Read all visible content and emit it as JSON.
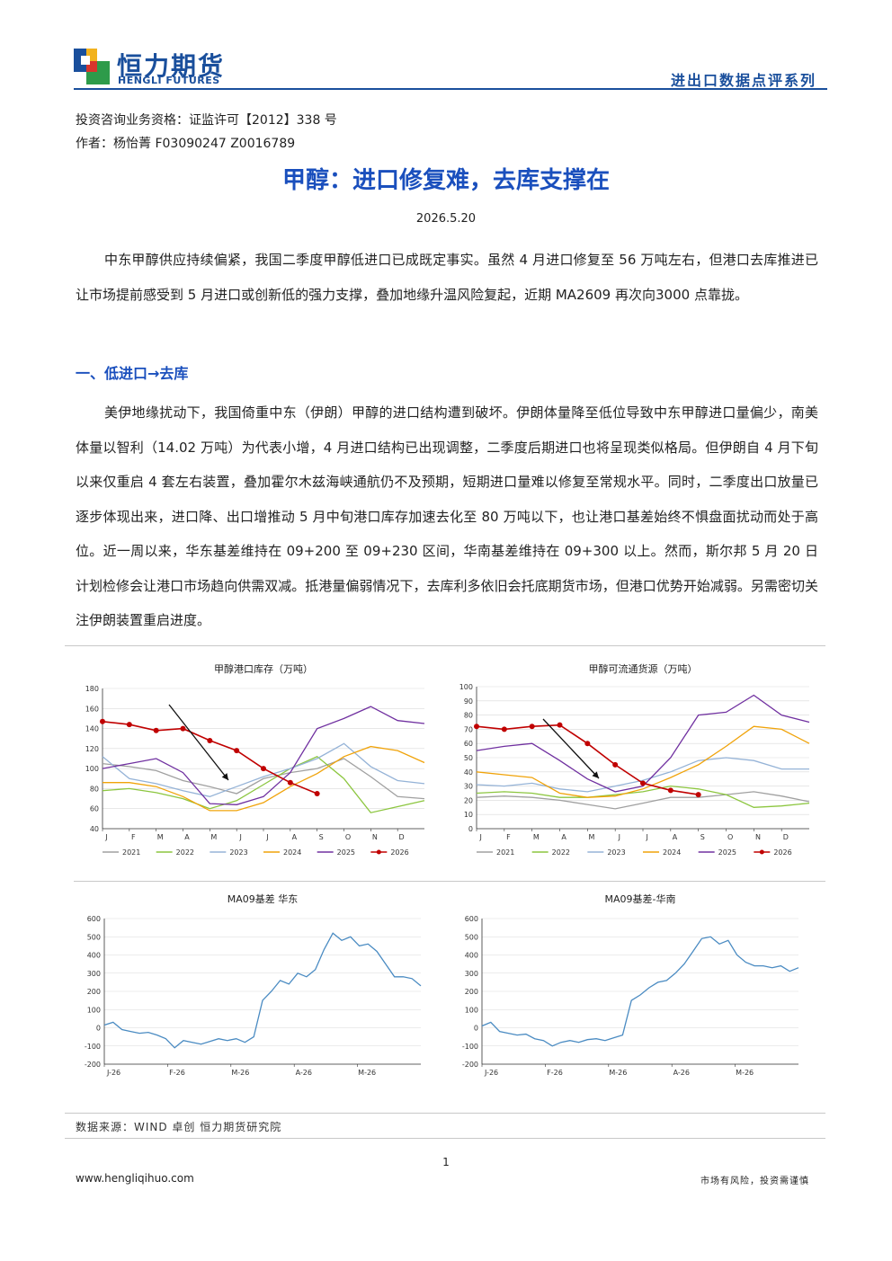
{
  "header": {
    "logo_cn": "恒力期货",
    "logo_en": "HENGLI FUTURES",
    "series": "进出口数据点评系列",
    "logo_colors": [
      "#1a4f9c",
      "#2e9b4a",
      "#f2b21e",
      "#d9352c"
    ]
  },
  "meta": {
    "qualification": "投资咨询业务资格：证监许可【2012】338 号",
    "author": "作者：杨怡菁    F03090247    Z0016789"
  },
  "title": "甲醇：进口修复难，去库支撑在",
  "date": "2026.5.20",
  "intro": "中东甲醇供应持续偏紧，我国二季度甲醇低进口已成既定事实。虽然 4 月进口修复至 56 万吨左右，但港口去库推进已让市场提前感受到 5 月进口或创新低的强力支撑，叠加地缘升温风险复起，近期 MA2609 再次向3000 点靠拢。",
  "section1": {
    "heading": "一、低进口→去库",
    "body": "美伊地缘扰动下，我国倚重中东（伊朗）甲醇的进口结构遭到破坏。伊朗体量降至低位导致中东甲醇进口量偏少，南美体量以智利（14.02 万吨）为代表小增，4 月进口结构已出现调整，二季度后期进口也将呈现类似格局。但伊朗自 4 月下旬以来仅重启 4 套左右装置，叠加霍尔木兹海峡通航仍不及预期，短期进口量难以修复至常规水平。同时，二季度出口放量已逐步体现出来，进口降、出口增推动 5 月中旬港口库存加速去化至 80 万吨以下，也让港口基差始终不惧盘面扰动而处于高位。近一周以来，华东基差维持在 09+200 至 09+230 区间，华南基差维持在 09+300 以上。然而，斯尔邦 5 月 20 日计划检修会让港口市场趋向供需双减。抵港量偏弱情况下，去库利多依旧会托底期货市场，但港口优势开始减弱。另需密切关注伊朗装置重启进度。"
  },
  "chart_data": [
    {
      "type": "line",
      "title": "甲醇港口库存（万吨）",
      "ylim": [
        40,
        180
      ],
      "yticks": [
        40,
        60,
        80,
        100,
        120,
        140,
        160,
        180
      ],
      "xticks": [
        "J",
        "F",
        "M",
        "A",
        "M",
        "J",
        "J",
        "A",
        "S",
        "O",
        "N",
        "D"
      ],
      "legend_position": "bottom",
      "series": [
        {
          "name": "2021",
          "color": "#a0a0a0",
          "values": [
            105,
            102,
            98,
            88,
            82,
            75,
            90,
            96,
            100,
            110,
            92,
            72,
            70
          ]
        },
        {
          "name": "2022",
          "color": "#8cc63f",
          "values": [
            78,
            80,
            76,
            70,
            60,
            68,
            84,
            100,
            112,
            90,
            56,
            62,
            68
          ]
        },
        {
          "name": "2023",
          "color": "#95b3d7",
          "values": [
            112,
            90,
            85,
            78,
            72,
            82,
            92,
            100,
            110,
            125,
            102,
            88,
            85
          ]
        },
        {
          "name": "2024",
          "color": "#f0a30a",
          "values": [
            86,
            86,
            82,
            72,
            58,
            58,
            66,
            82,
            95,
            112,
            122,
            118,
            106
          ]
        },
        {
          "name": "2025",
          "color": "#7030a0",
          "values": [
            100,
            105,
            110,
            96,
            65,
            64,
            72,
            96,
            140,
            150,
            162,
            148,
            145
          ]
        },
        {
          "name": "2026",
          "color": "#c00000",
          "values": [
            147,
            144,
            138,
            140,
            128,
            118,
            100,
            86,
            75
          ]
        }
      ]
    },
    {
      "type": "line",
      "title": "甲醇可流通货源（万吨）",
      "ylim": [
        0,
        100
      ],
      "yticks": [
        0,
        10,
        20,
        30,
        40,
        50,
        60,
        70,
        80,
        90,
        100
      ],
      "xticks": [
        "J",
        "F",
        "M",
        "A",
        "M",
        "J",
        "J",
        "A",
        "S",
        "O",
        "N",
        "D"
      ],
      "legend_position": "bottom",
      "series": [
        {
          "name": "2021",
          "color": "#a0a0a0",
          "values": [
            22,
            23,
            22,
            20,
            17,
            14,
            18,
            22,
            22,
            24,
            26,
            23,
            19
          ]
        },
        {
          "name": "2022",
          "color": "#8cc63f",
          "values": [
            25,
            26,
            25,
            22,
            22,
            24,
            26,
            30,
            28,
            24,
            15,
            16,
            18
          ]
        },
        {
          "name": "2023",
          "color": "#95b3d7",
          "values": [
            31,
            30,
            32,
            28,
            26,
            30,
            34,
            40,
            48,
            50,
            48,
            42,
            42
          ]
        },
        {
          "name": "2024",
          "color": "#f0a30a",
          "values": [
            40,
            38,
            36,
            25,
            22,
            23,
            28,
            36,
            45,
            58,
            72,
            70,
            60
          ]
        },
        {
          "name": "2025",
          "color": "#7030a0",
          "values": [
            55,
            58,
            60,
            48,
            35,
            26,
            30,
            50,
            80,
            82,
            94,
            80,
            75
          ]
        },
        {
          "name": "2026",
          "color": "#c00000",
          "values": [
            72,
            70,
            72,
            73,
            60,
            45,
            32,
            27,
            24
          ]
        }
      ]
    },
    {
      "type": "line",
      "title": "MA09基差 华东",
      "ylim": [
        -200,
        600
      ],
      "yticks": [
        -200,
        -100,
        0,
        100,
        200,
        300,
        400,
        500,
        600
      ],
      "xticks": [
        "J-26",
        "F-26",
        "M-26",
        "A-26",
        "M-26"
      ],
      "series": [
        {
          "name": "",
          "color": "#4a8bc2",
          "values": [
            15,
            30,
            -10,
            -20,
            -30,
            -25,
            -40,
            -60,
            -110,
            -70,
            -80,
            -90,
            -75,
            -60,
            -70,
            -60,
            -80,
            -50,
            150,
            200,
            260,
            240,
            300,
            280,
            320,
            430,
            520,
            480,
            500,
            450,
            460,
            420,
            350,
            280,
            280,
            270,
            230
          ]
        }
      ]
    },
    {
      "type": "line",
      "title": "MA09基差-华南",
      "ylim": [
        -200,
        600
      ],
      "yticks": [
        -200,
        -100,
        0,
        100,
        200,
        300,
        400,
        500,
        600
      ],
      "xticks": [
        "J-26",
        "F-26",
        "M-26",
        "A-26",
        "M-26"
      ],
      "series": [
        {
          "name": "",
          "color": "#4a8bc2",
          "values": [
            10,
            30,
            -20,
            -30,
            -40,
            -35,
            -60,
            -70,
            -100,
            -80,
            -70,
            -80,
            -65,
            -60,
            -70,
            -55,
            -40,
            150,
            180,
            220,
            250,
            260,
            300,
            350,
            420,
            490,
            500,
            460,
            480,
            400,
            360,
            340,
            340,
            330,
            340,
            310,
            330
          ]
        }
      ]
    }
  ],
  "source": "数据来源：WIND 卓创 恒力期货研究院",
  "page_number": "1",
  "footer": {
    "website": "www.hengliqihuo.com",
    "disclaimer": "市场有风险，投资需谨慎"
  }
}
